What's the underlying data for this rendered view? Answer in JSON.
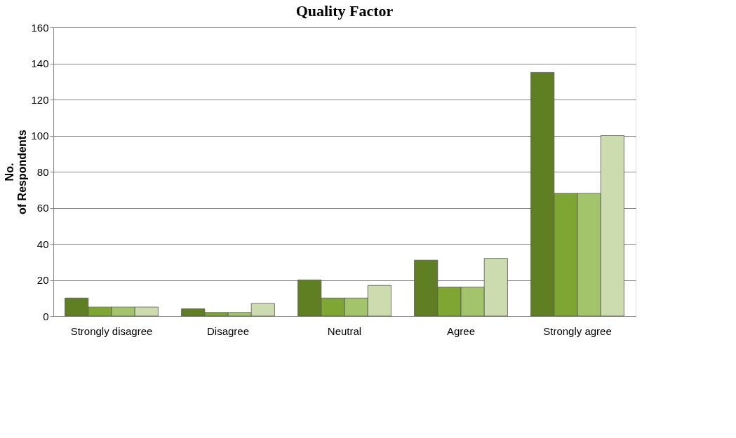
{
  "chart_data": {
    "type": "bar",
    "title": "Quality Factor",
    "ylabel": "No.\nof Respondents",
    "categories": [
      "Strongly disagree",
      "Disagree",
      "Neutral",
      "Agree",
      "Strongly agree"
    ],
    "series": [
      {
        "color": "#5f7f22",
        "values": [
          10,
          4,
          20,
          31,
          135
        ]
      },
      {
        "color": "#7fa532",
        "values": [
          5,
          2,
          10,
          16,
          68
        ]
      },
      {
        "color": "#a3c46a",
        "values": [
          5,
          2,
          10,
          16,
          68
        ]
      },
      {
        "color": "#ccdcae",
        "values": [
          5,
          7,
          17,
          32,
          100
        ]
      }
    ],
    "ylim": [
      0,
      160
    ],
    "yticks": [
      0,
      20,
      40,
      60,
      80,
      100,
      120,
      140,
      160
    ],
    "grid": "y"
  }
}
